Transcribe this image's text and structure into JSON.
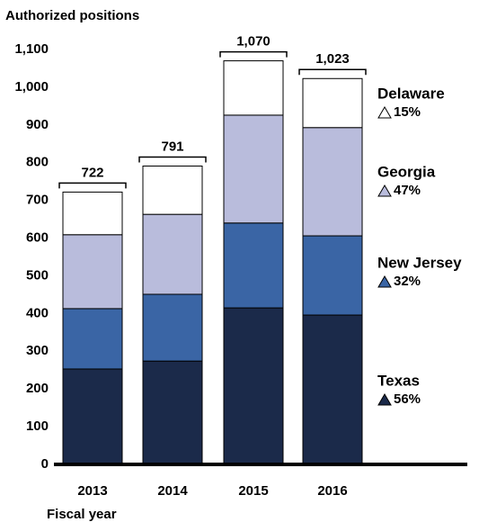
{
  "chart_data": {
    "type": "stacked_bar",
    "y_label": "Authorized positions",
    "x_label": "Fiscal year",
    "categories": [
      "2013",
      "2014",
      "2015",
      "2016"
    ],
    "series": [
      {
        "name": "Texas",
        "color": "#1b2a4a",
        "change_label": "56%",
        "values": [
          253,
          274,
          415,
          396
        ]
      },
      {
        "name": "New Jersey",
        "color": "#3a65a5",
        "change_label": "32%",
        "values": [
          160,
          177,
          225,
          210
        ]
      },
      {
        "name": "Georgia",
        "color": "#b9bcdc",
        "change_label": "47%",
        "values": [
          196,
          212,
          286,
          287
        ]
      },
      {
        "name": "Delaware",
        "color": "#ffffff",
        "change_label": "15%",
        "values": [
          113,
          128,
          144,
          130
        ]
      }
    ],
    "totals": [
      722,
      791,
      1070,
      1023
    ],
    "total_labels": [
      "722",
      "791",
      "1,070",
      "1,023"
    ],
    "ylim": [
      0,
      1100
    ],
    "yticks": [
      0,
      100,
      200,
      300,
      400,
      500,
      600,
      700,
      800,
      900,
      {
        "value": 1000,
        "label": "1,000"
      },
      {
        "value": 1100,
        "label": "1,100"
      }
    ],
    "grid": false
  }
}
